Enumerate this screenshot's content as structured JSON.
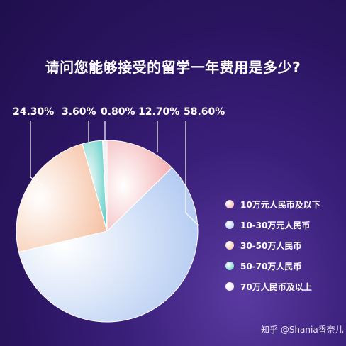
{
  "chart_data": {
    "type": "pie",
    "title": "请问您能够接受的留学一年费用是多少?",
    "categories": [
      "10万元人民币及以下",
      "10-30万元人民币",
      "30-50万人民币",
      "50-70万人民币",
      "70万人民币及以上"
    ],
    "values": [
      12.7,
      58.6,
      24.3,
      3.6,
      0.8
    ],
    "value_labels": [
      "12.70%",
      "58.60%",
      "24.30%",
      "3.60%",
      "0.80%"
    ],
    "colors": [
      "#f2a3a6",
      "#a9c4f0",
      "#f4b896",
      "#4ec8c0",
      "#e6e3ec"
    ],
    "legend_position": "right"
  },
  "top_labels": [
    "24.30%",
    "3.60%",
    "0.80%",
    "12.70%",
    "58.60%"
  ],
  "watermark": "知乎 @Shania香奈儿"
}
